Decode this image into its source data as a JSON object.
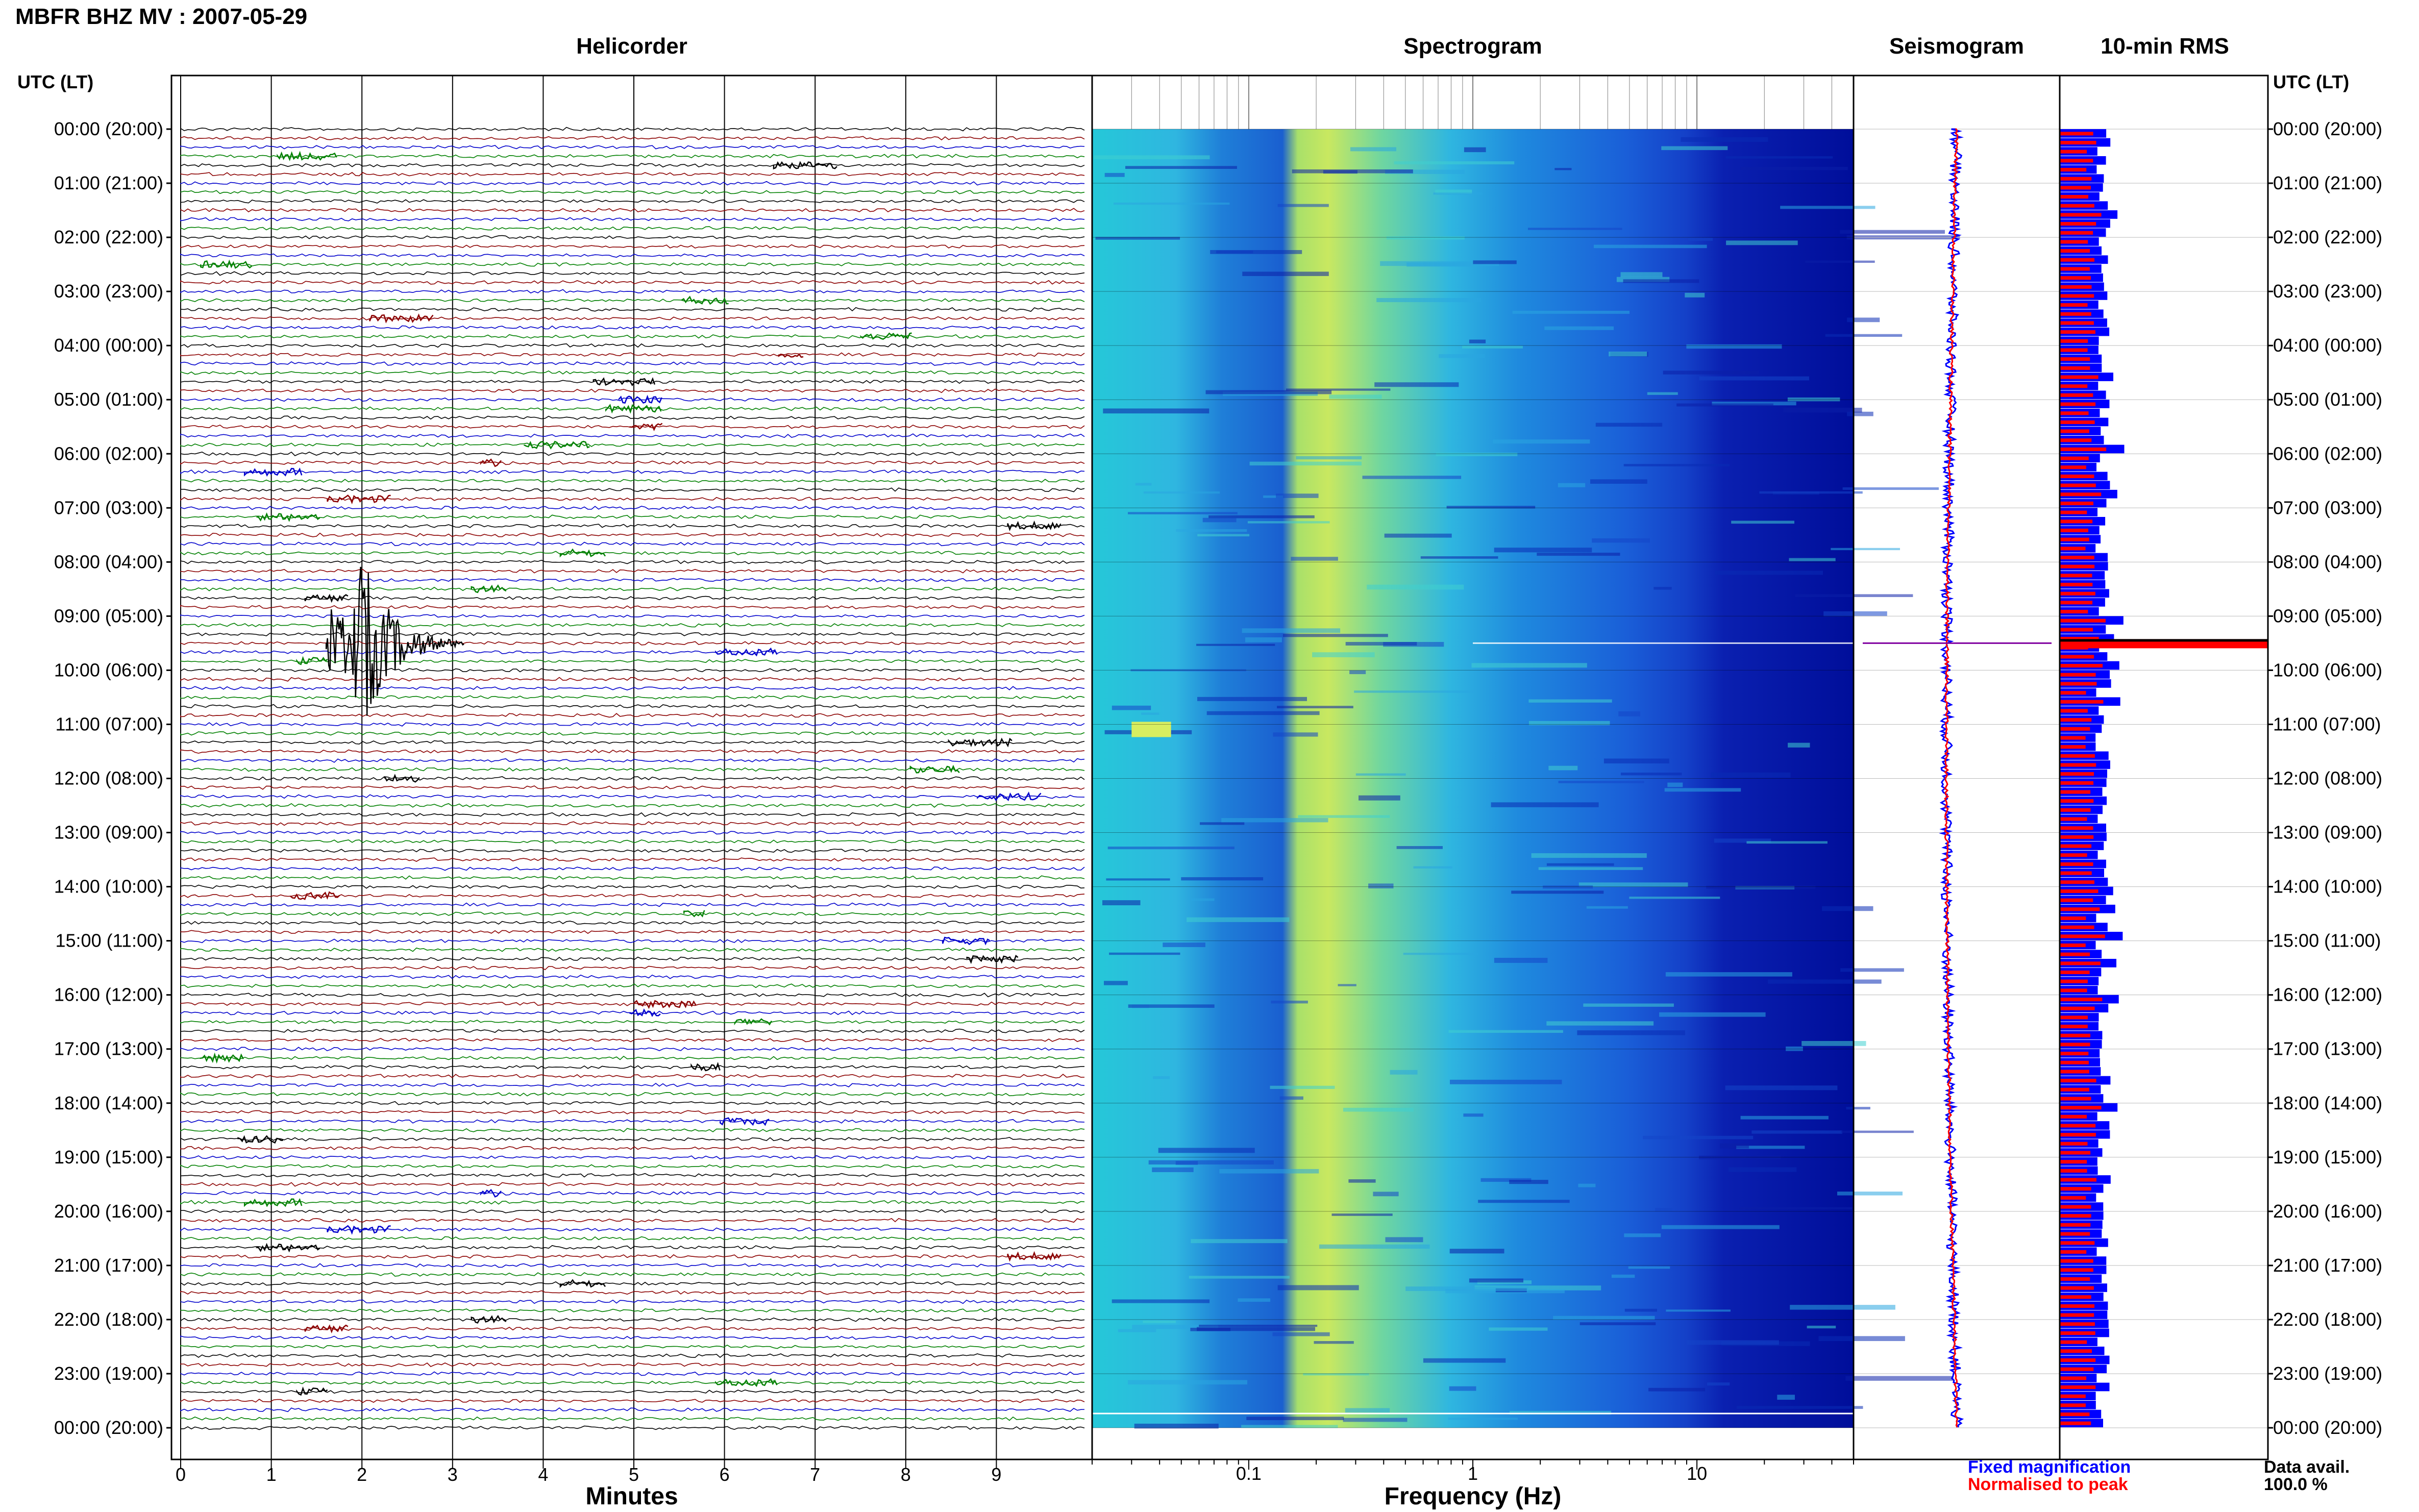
{
  "header": {
    "title": "MBFR BHZ MV : 2007-05-29",
    "utc_label_left": "UTC (LT)",
    "utc_label_right": "UTC (LT)"
  },
  "panels": {
    "helicorder": "Helicorder",
    "spectrogram": "Spectrogram",
    "seismogram": "Seismogram",
    "rms": "10-min RMS"
  },
  "axes": {
    "minutes_label": "Minutes",
    "frequency_label": "Frequency (Hz)"
  },
  "legend": {
    "fixed": "Fixed magnification",
    "normalised": "Normalised to peak",
    "data_avail_label": "Data avail.",
    "data_avail_value": "100.0 %"
  },
  "colors": {
    "trace_black": "#000000",
    "trace_red": "#8b0000",
    "trace_blue": "#0000cc",
    "trace_green": "#008000",
    "fixed": "#0000ff",
    "normalised": "#ff0000"
  },
  "chart_data": {
    "type": "heatmap",
    "time_labels": [
      "00:00 (20:00)",
      "01:00 (21:00)",
      "02:00 (22:00)",
      "03:00 (23:00)",
      "04:00 (00:00)",
      "05:00 (01:00)",
      "06:00 (02:00)",
      "07:00 (03:00)",
      "08:00 (04:00)",
      "09:00 (05:00)",
      "10:00 (06:00)",
      "11:00 (07:00)",
      "12:00 (08:00)",
      "13:00 (09:00)",
      "14:00 (10:00)",
      "15:00 (11:00)",
      "16:00 (12:00)",
      "17:00 (13:00)",
      "18:00 (14:00)",
      "19:00 (15:00)",
      "20:00 (16:00)",
      "21:00 (17:00)",
      "22:00 (18:00)",
      "23:00 (19:00)",
      "00:00 (20:00)"
    ],
    "minute_ticks": [
      "0",
      "1",
      "2",
      "3",
      "4",
      "5",
      "6",
      "7",
      "8",
      "9"
    ],
    "frequency_ticks": [
      "0.1",
      "1",
      "10"
    ],
    "helicorder": {
      "minutes_range": [
        0,
        10
      ],
      "lines_per_hour": 6,
      "trace_colors_cycle": [
        "black",
        "red",
        "blue",
        "green"
      ],
      "event": {
        "time_utc": "09:30",
        "minute": 2,
        "description": "large earthquake"
      }
    },
    "spectrogram": {
      "frequency_range_hz": [
        0.02,
        50
      ],
      "log_x": true,
      "peak_band_hz": [
        0.2,
        0.35
      ]
    }
  }
}
